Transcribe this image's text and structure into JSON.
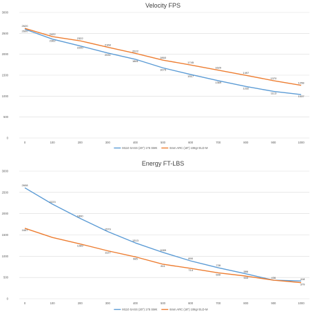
{
  "chart_data": [
    {
      "type": "line",
      "title": "Velocity FPS",
      "x": [
        0,
        100,
        200,
        300,
        400,
        500,
        600,
        700,
        800,
        900,
        1000
      ],
      "ylim": [
        0,
        3000
      ],
      "yticks": [
        0,
        500,
        1000,
        1500,
        2000,
        2500,
        3000
      ],
      "grid": true,
      "legend_position": "bottom",
      "series": [
        {
          "name": "M110 SASS (20\") 175 SMK",
          "color": "#5b9bd5",
          "values": [
            2600,
            2362,
            2200,
            2031,
            1881,
            1675,
            1517,
            1369,
            1232,
            1113,
            1037
          ],
          "labels": [
            "2600",
            "2362",
            "2200",
            "2031",
            "1881",
            "1675",
            "1517",
            "1369",
            "1232",
            "1113",
            "1037"
          ]
        },
        {
          "name": "6mm ARC (18\") 108gr ELD-M",
          "color": "#ed7d31",
          "values": [
            2620,
            2422,
            2322,
            2168,
            2022,
            1860,
            1745,
            1620,
            1497,
            1370,
            1258
          ],
          "labels": [
            "2620",
            "2422",
            "2322",
            "2168",
            "2022",
            "1860",
            "1745",
            "1620",
            "1497",
            "1370",
            "1258"
          ]
        }
      ]
    },
    {
      "type": "line",
      "title": "Energy FT-LBS",
      "x": [
        0,
        100,
        200,
        300,
        400,
        500,
        600,
        700,
        800,
        900,
        1000
      ],
      "ylim": [
        0,
        3000
      ],
      "yticks": [
        0,
        500,
        1000,
        1500,
        2000,
        2500,
        3000
      ],
      "grid": true,
      "legend_position": "bottom",
      "series": [
        {
          "name": "M110 SASS (20\") 175 SMK",
          "color": "#5b9bd5",
          "values": [
            2608,
            2223,
            1890,
            1579,
            1313,
            1089,
            890,
            728,
            586,
            436,
            418
          ],
          "labels": [
            "2608",
            "2223",
            "1890",
            "1579",
            "1313",
            "1089",
            "890",
            "728",
            "586",
            "436",
            "418"
          ]
        },
        {
          "name": "6mm ARC (18\") 108gr ELD-M",
          "color": "#ed7d31",
          "values": [
            1657,
            1440,
            1289,
            1127,
            985,
            811,
            714,
            609,
            533,
            436,
            379
          ],
          "labels": [
            "1657",
            "",
            "1289",
            "1127",
            "985",
            "811",
            "714",
            "609",
            "533",
            "",
            "379"
          ]
        }
      ]
    }
  ]
}
